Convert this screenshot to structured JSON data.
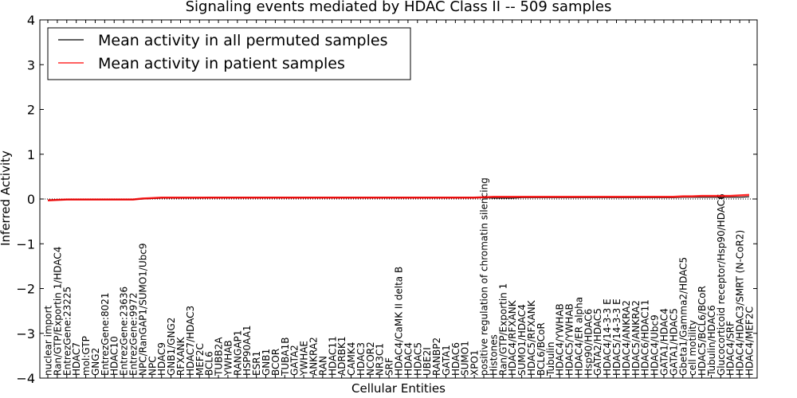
{
  "chart_data": {
    "type": "line",
    "title": "Signaling events mediated by HDAC Class II -- 509 samples",
    "xlabel": "Cellular Entities",
    "ylabel": "Inferred Activity",
    "ylim": [
      -4,
      4
    ],
    "yticks": [
      -4,
      -3,
      -2,
      -1,
      0,
      1,
      2,
      3,
      4
    ],
    "ytick_labels": [
      "−4",
      "−3",
      "−2",
      "−1",
      "0",
      "1",
      "2",
      "3",
      "4"
    ],
    "grid": false,
    "legend_position": "top-left",
    "categories": [
      "nuclear import",
      "Ran/GTP/Exportin 1/HDAC4",
      "EntrezGene:23225",
      "HDAC7",
      "mol:GTP",
      "GNG2",
      "EntrezGene:8021",
      "HDAC10",
      "EntrezGene:23636",
      "EntrezGene:9972",
      "NPC/RanGAP1/SUMO1/Ubc9",
      "NPC",
      "HDAC9",
      "GNB1/GNG2",
      "RFXANK",
      "HDAC7/HDAC3",
      "MEF2C",
      "BCL6",
      "TUBB2A",
      "YWHAB",
      "RANGAP1",
      "HSP90AA1",
      "ESR1",
      "GNB1",
      "BCOR",
      "TUBA1B",
      "GATA2",
      "YWHAE",
      "ANKRA2",
      "RAN",
      "HDAC11",
      "ADRBK1",
      "CAMK4",
      "HDAC3",
      "NCOR2",
      "NR3C1",
      "SRF",
      "HDAC4/CaMK II delta B",
      "HDAC4",
      "HDAC5",
      "UBE2I",
      "RANBP2",
      "GATA1",
      "HDAC6",
      "SUMO1",
      "XPO1",
      "positive regulation of chromatin silencing",
      "Histones",
      "Ran/GTP/Exportin 1",
      "HDAC4/RFXANK",
      "SUMO1/HDAC4",
      "HDAC5/RFXANK",
      "BCL6/BCoR",
      "Tubulin",
      "HDAC4/YWHAB",
      "HDAC5/YWHAB",
      "HDAC4/ER alpha",
      "Hsp90/HDAC6",
      "GATA2/HDAC5",
      "HDAC4/14-3-3 E",
      "HDAC5/14-3-3 E",
      "HDAC4/ANKRA2",
      "HDAC5/ANKRA2",
      "HDAC6/HDAC11",
      "HDAC4/Ubc9",
      "GATA1/HDAC4",
      "GATA1/HDAC5",
      "Gbeta1/Gamma2/HDAC5",
      "cell motility",
      "HDAC5/BCL6/BCoR",
      "Tubulin/HDAC6",
      "Glucocorticoid receptor/Hsp90/HDAC6",
      "HDAC4/SRF",
      "HDAC4/HDAC3/SMRT (N-CoR2)",
      "HDAC4/MEF2C"
    ],
    "series": [
      {
        "name": "Mean activity in all permuted samples",
        "color": "#000000",
        "values": [
          -0.02,
          -0.02,
          -0.01,
          -0.01,
          -0.01,
          -0.01,
          -0.01,
          -0.01,
          -0.01,
          -0.01,
          0.0,
          0.01,
          0.02,
          0.02,
          0.02,
          0.02,
          0.02,
          0.03,
          0.03,
          0.03,
          0.03,
          0.03,
          0.03,
          0.03,
          0.03,
          0.03,
          0.03,
          0.03,
          0.03,
          0.03,
          0.03,
          0.03,
          0.03,
          0.03,
          0.03,
          0.03,
          0.03,
          0.03,
          0.03,
          0.03,
          0.03,
          0.03,
          0.03,
          0.03,
          0.03,
          0.03,
          0.03,
          0.02,
          0.02,
          0.02,
          0.03,
          0.03,
          0.03,
          0.03,
          0.03,
          0.03,
          0.03,
          0.03,
          0.03,
          0.03,
          0.03,
          0.03,
          0.03,
          0.03,
          0.03,
          0.03,
          0.03,
          0.04,
          0.04,
          0.04,
          0.04,
          0.04,
          0.04,
          0.04,
          0.05
        ]
      },
      {
        "name": "Mean activity in patient samples",
        "color": "#ff0000",
        "values": [
          -0.03,
          -0.02,
          -0.01,
          -0.01,
          -0.01,
          -0.01,
          -0.01,
          -0.01,
          -0.01,
          -0.01,
          0.01,
          0.02,
          0.03,
          0.03,
          0.03,
          0.03,
          0.03,
          0.03,
          0.03,
          0.03,
          0.03,
          0.03,
          0.03,
          0.03,
          0.03,
          0.03,
          0.03,
          0.03,
          0.03,
          0.03,
          0.03,
          0.03,
          0.03,
          0.03,
          0.03,
          0.03,
          0.03,
          0.03,
          0.03,
          0.03,
          0.03,
          0.03,
          0.03,
          0.03,
          0.03,
          0.03,
          0.04,
          0.05,
          0.05,
          0.05,
          0.05,
          0.05,
          0.05,
          0.05,
          0.05,
          0.05,
          0.05,
          0.05,
          0.05,
          0.05,
          0.05,
          0.05,
          0.05,
          0.05,
          0.05,
          0.05,
          0.05,
          0.06,
          0.06,
          0.07,
          0.07,
          0.07,
          0.07,
          0.08,
          0.09
        ]
      }
    ]
  }
}
